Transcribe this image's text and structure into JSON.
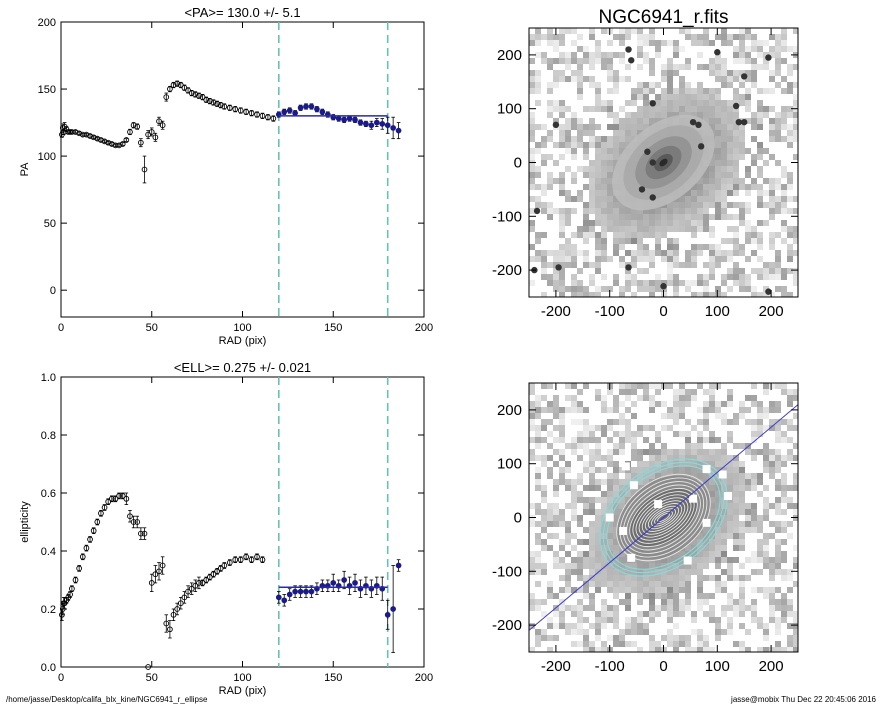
{
  "footer": {
    "path": "/home/jasse/Desktop/califa_blx_kine/NGC6941_r_ellipse",
    "user_date": "jasse@mobix  Thu Dec 22 20:45:06 2016"
  },
  "colors": {
    "data": "#000000",
    "fit_points": "#1a1a8a",
    "fit_line": "#2a2aa6",
    "dashed_lines": "#66c2b4",
    "contours_inner": "#e8e8e8",
    "contours_outer": "#7fdede",
    "major_axis": "#3a3ad0"
  },
  "chart_data": [
    {
      "type": "scatter",
      "panel": "pa",
      "title": "<PA>= 130.0 +/-   5.1",
      "xlabel": "RAD (pix)",
      "ylabel": "PA",
      "xlim": [
        0,
        200
      ],
      "ylim": [
        -20,
        200
      ],
      "xticks": [
        0,
        50,
        100,
        150,
        200
      ],
      "yticks": [
        0,
        50,
        100,
        150,
        200
      ],
      "mean": 130.0,
      "error": 5.1,
      "fit_range": [
        120,
        180
      ],
      "fit_line": {
        "x": [
          120,
          180
        ],
        "y": [
          130.0,
          130.0
        ]
      },
      "series": [
        {
          "x": [
            0.5,
            1,
            1.5,
            2,
            3,
            4,
            5,
            6,
            8,
            10,
            12,
            14,
            16,
            18,
            20,
            22,
            24,
            26,
            28,
            30,
            32,
            34,
            36,
            38,
            40,
            42,
            44,
            46,
            48,
            50,
            52,
            54,
            56,
            58,
            60,
            62,
            64,
            66,
            68,
            70,
            72,
            74,
            76,
            78,
            80,
            82,
            84,
            86,
            88,
            90,
            93,
            96,
            99,
            102,
            105,
            108,
            111,
            114,
            117
          ],
          "y": [
            116,
            121,
            118,
            122,
            120,
            118,
            118,
            118,
            118,
            117,
            116,
            116,
            115,
            114,
            113,
            112,
            111,
            110,
            109,
            108,
            108,
            109,
            112,
            118,
            123,
            122,
            110,
            90,
            116,
            118,
            114,
            126,
            123,
            144,
            150,
            153,
            154,
            153,
            151,
            149,
            147,
            146,
            145,
            144,
            142,
            141,
            140,
            139,
            138,
            137,
            136,
            135,
            134,
            133,
            132,
            131,
            130,
            129,
            128
          ],
          "yerr": [
            2,
            3,
            2,
            3,
            2,
            1,
            1,
            1,
            1,
            1,
            1,
            1,
            1,
            1,
            1,
            1,
            1,
            1,
            1,
            1,
            1,
            1,
            1,
            2,
            2,
            2,
            3,
            10,
            3,
            3,
            3,
            3,
            3,
            3,
            2,
            2,
            2,
            2,
            2,
            2,
            2,
            2,
            2,
            2,
            2,
            2,
            2,
            2,
            2,
            2,
            2,
            2,
            2,
            2,
            2,
            2,
            2,
            2,
            2
          ]
        },
        {
          "x": [
            120,
            123,
            126,
            129,
            132,
            135,
            138,
            141,
            144,
            147,
            150,
            153,
            156,
            159,
            162,
            165,
            168,
            171,
            174,
            177,
            180,
            183,
            186
          ],
          "y": [
            131,
            133,
            134,
            132,
            136,
            137,
            137,
            135,
            133,
            131,
            129,
            128,
            127,
            128,
            127,
            125,
            124,
            123,
            125,
            124,
            123,
            121,
            119
          ],
          "yerr": [
            2,
            2,
            2,
            2,
            2,
            2,
            2,
            2,
            2,
            2,
            2,
            2,
            2,
            2,
            2,
            2,
            2,
            3,
            3,
            4,
            6,
            8,
            6
          ]
        }
      ]
    },
    {
      "type": "image",
      "panel": "image",
      "title": "NGC6941_r.fits",
      "xlim": [
        -250,
        250
      ],
      "ylim": [
        -250,
        250
      ],
      "xticks": [
        -200,
        -100,
        0,
        100,
        200
      ],
      "yticks": [
        -200,
        -100,
        0,
        100,
        200
      ],
      "galaxy": {
        "center": [
          0,
          0
        ],
        "semi_major": 110,
        "semi_minor": 70,
        "pa_deg": 40
      },
      "stars": [
        [
          -65,
          210
        ],
        [
          -60,
          190
        ],
        [
          100,
          205
        ],
        [
          150,
          160
        ],
        [
          195,
          195
        ],
        [
          -200,
          70
        ],
        [
          -20,
          110
        ],
        [
          135,
          105
        ],
        [
          140,
          75
        ],
        [
          150,
          75
        ],
        [
          -195,
          -195
        ],
        [
          195,
          -240
        ],
        [
          -65,
          -195
        ],
        [
          0,
          -230
        ],
        [
          -20,
          -65
        ],
        [
          -40,
          -50
        ],
        [
          -235,
          -90
        ],
        [
          -240,
          -200
        ],
        [
          65,
          70
        ],
        [
          55,
          75
        ],
        [
          -30,
          20
        ],
        [
          -20,
          0
        ],
        [
          70,
          30
        ]
      ]
    },
    {
      "type": "scatter",
      "panel": "ellipticity",
      "title": "<ELL>= 0.275 +/-  0.021",
      "xlabel": "RAD (pix)",
      "ylabel": "ellipticity",
      "xlim": [
        0,
        200
      ],
      "ylim": [
        0.0,
        1.0
      ],
      "xticks": [
        0,
        50,
        100,
        150,
        200
      ],
      "yticks": [
        0.0,
        0.2,
        0.4,
        0.6,
        0.8,
        1.0
      ],
      "mean": 0.275,
      "error": 0.021,
      "fit_range": [
        120,
        180
      ],
      "fit_line": {
        "x": [
          120,
          180
        ],
        "y": [
          0.275,
          0.275
        ]
      },
      "series": [
        {
          "x": [
            0.5,
            1,
            1.5,
            2,
            3,
            4,
            5,
            6,
            8,
            10,
            12,
            14,
            16,
            18,
            20,
            22,
            24,
            26,
            28,
            30,
            32,
            34,
            36,
            38,
            40,
            42,
            44,
            46,
            48,
            50,
            52,
            54,
            56,
            58,
            60,
            62,
            64,
            66,
            68,
            70,
            72,
            74,
            76,
            78,
            80,
            82,
            84,
            86,
            88,
            90,
            93,
            96,
            99,
            102,
            105,
            108,
            111
          ],
          "y": [
            0.18,
            0.2,
            0.22,
            0.22,
            0.23,
            0.24,
            0.25,
            0.27,
            0.3,
            0.34,
            0.38,
            0.41,
            0.44,
            0.47,
            0.5,
            0.53,
            0.55,
            0.57,
            0.58,
            0.58,
            0.59,
            0.59,
            0.58,
            0.52,
            0.5,
            0.5,
            0.46,
            0.46,
            0.0,
            0.29,
            0.32,
            0.33,
            0.35,
            0.15,
            0.13,
            0.18,
            0.2,
            0.22,
            0.24,
            0.26,
            0.27,
            0.28,
            0.29,
            0.29,
            0.3,
            0.31,
            0.32,
            0.33,
            0.34,
            0.35,
            0.36,
            0.37,
            0.37,
            0.38,
            0.37,
            0.38,
            0.37
          ],
          "yerr": [
            0.02,
            0.02,
            0.02,
            0.02,
            0.01,
            0.01,
            0.01,
            0.01,
            0.01,
            0.01,
            0.01,
            0.01,
            0.01,
            0.01,
            0.01,
            0.01,
            0.01,
            0.01,
            0.01,
            0.01,
            0.01,
            0.01,
            0.02,
            0.02,
            0.02,
            0.02,
            0.02,
            0.02,
            0.0,
            0.03,
            0.03,
            0.03,
            0.03,
            0.03,
            0.03,
            0.02,
            0.02,
            0.02,
            0.02,
            0.02,
            0.02,
            0.02,
            0.02,
            0.01,
            0.01,
            0.01,
            0.01,
            0.01,
            0.01,
            0.01,
            0.01,
            0.01,
            0.01,
            0.01,
            0.01,
            0.01,
            0.01
          ]
        },
        {
          "x": [
            120,
            123,
            126,
            129,
            132,
            135,
            138,
            141,
            144,
            147,
            150,
            153,
            156,
            159,
            162,
            165,
            168,
            171,
            174,
            177,
            180,
            183,
            186
          ],
          "y": [
            0.24,
            0.23,
            0.25,
            0.26,
            0.26,
            0.26,
            0.26,
            0.27,
            0.28,
            0.28,
            0.29,
            0.28,
            0.3,
            0.28,
            0.29,
            0.27,
            0.28,
            0.27,
            0.28,
            0.27,
            0.18,
            0.2,
            0.35
          ],
          "yerr": [
            0.02,
            0.02,
            0.02,
            0.02,
            0.02,
            0.02,
            0.02,
            0.02,
            0.02,
            0.02,
            0.03,
            0.02,
            0.03,
            0.03,
            0.03,
            0.03,
            0.03,
            0.03,
            0.03,
            0.04,
            0.05,
            0.15,
            0.02
          ]
        }
      ]
    },
    {
      "type": "image",
      "panel": "contours",
      "xlim": [
        -250,
        250
      ],
      "ylim": [
        -250,
        250
      ],
      "xticks": [
        -200,
        -100,
        0,
        100,
        200
      ],
      "yticks": [
        -200,
        -100,
        0,
        100,
        200
      ],
      "major_axis_pa_deg": 40,
      "masks": [
        [
          -70,
          95
        ],
        [
          -55,
          60
        ],
        [
          55,
          35
        ],
        [
          80,
          90
        ],
        [
          110,
          80
        ],
        [
          120,
          40
        ],
        [
          80,
          -10
        ],
        [
          -75,
          -25
        ],
        [
          -60,
          -75
        ],
        [
          -100,
          0
        ],
        [
          45,
          -80
        ],
        [
          -10,
          25
        ]
      ]
    }
  ]
}
